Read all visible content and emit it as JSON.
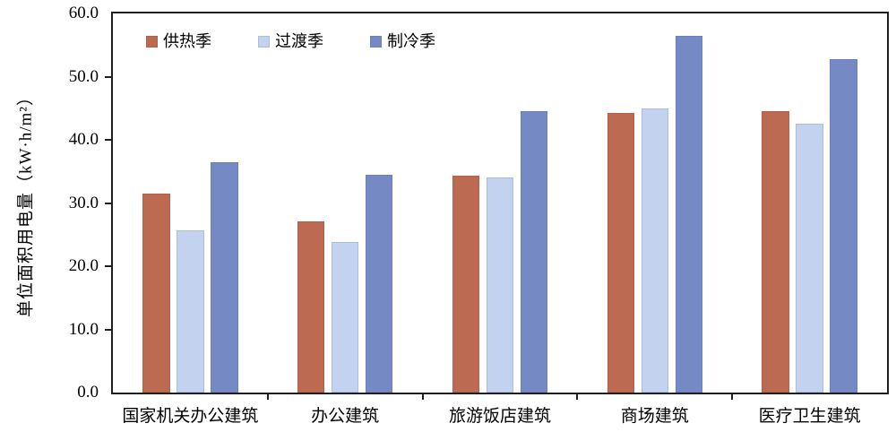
{
  "chart_data": {
    "type": "bar",
    "title": "",
    "ylabel": "单位面积用电量（kW·h/m²）",
    "xlabel": "",
    "categories": [
      "国家机关办公建筑",
      "办公建筑",
      "旅游饭店建筑",
      "商场建筑",
      "医疗卫生建筑"
    ],
    "series": [
      {
        "name": "供热季",
        "color": "#BD6A52",
        "border": "#B26048",
        "values": [
          31.5,
          27.1,
          34.3,
          44.2,
          44.6
        ]
      },
      {
        "name": "过渡季",
        "color": "#C3D2EE",
        "border": "#A9BEE2",
        "values": [
          25.7,
          23.9,
          34.1,
          44.9,
          42.6
        ]
      },
      {
        "name": "制冷季",
        "color": "#7589C4",
        "border": "#6B80BC",
        "values": [
          36.5,
          34.5,
          44.6,
          56.5,
          52.7
        ]
      }
    ],
    "ylim": [
      0,
      60
    ],
    "ytick_step": 10,
    "ytick_labels": [
      "0.0",
      "10.0",
      "20.0",
      "30.0",
      "40.0",
      "50.0",
      "60.0"
    ],
    "legend_position": "top-left-inside",
    "grid": false,
    "axis_color": "#1f1f1f"
  }
}
